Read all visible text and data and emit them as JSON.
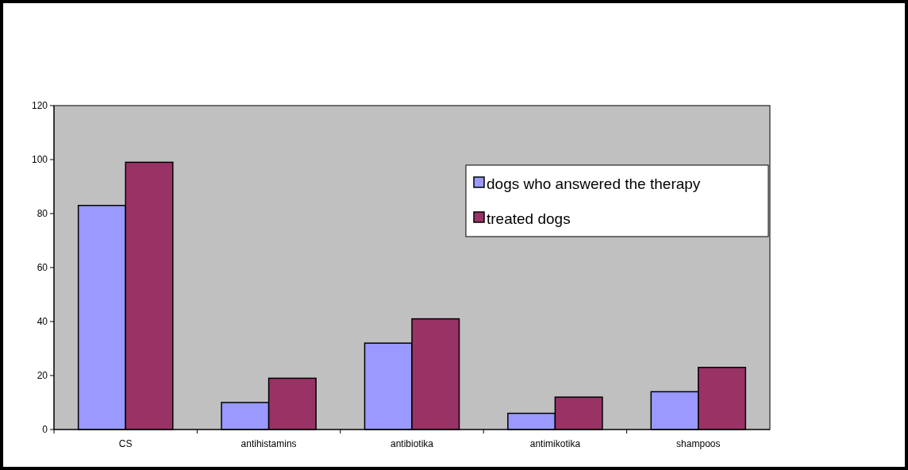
{
  "chart_data": {
    "type": "bar",
    "categories": [
      "CS",
      "antihistamins",
      "antibiotika",
      "antimikotika",
      "shampoos"
    ],
    "series": [
      {
        "name": "dogs who answered the therapy",
        "color": "#9999ff",
        "values": [
          83,
          10,
          32,
          6,
          14
        ]
      },
      {
        "name": "treated dogs",
        "color": "#993366",
        "values": [
          99,
          19,
          41,
          12,
          23
        ]
      }
    ],
    "ylim": [
      0,
      120
    ],
    "yticks": [
      0,
      20,
      40,
      60,
      80,
      100,
      120
    ],
    "grid": false,
    "legend": "right"
  }
}
